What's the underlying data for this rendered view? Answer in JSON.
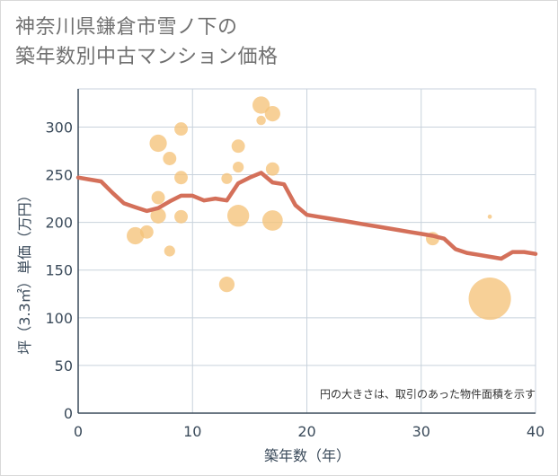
{
  "title_line1": "神奈川県鎌倉市雪ノ下の",
  "title_line2": "築年数別中古マンション価格",
  "chart_data": {
    "type": "scatter",
    "title": "神奈川県鎌倉市雪ノ下の築年数別中古マンション価格",
    "xlabel": "築年数（年）",
    "ylabel": "坪（3.3㎡）単価（万円）",
    "xlim": [
      0,
      40
    ],
    "ylim": [
      0,
      340
    ],
    "x_ticks": [
      0,
      10,
      20,
      30,
      40
    ],
    "y_ticks": [
      0,
      50,
      100,
      150,
      200,
      250,
      300
    ],
    "grid": true,
    "note": "円の大きさは、取引のあった物件面積を示す",
    "bubbles": [
      {
        "x": 5,
        "y": 186,
        "size": 5
      },
      {
        "x": 6,
        "y": 190,
        "size": 3
      },
      {
        "x": 7,
        "y": 283,
        "size": 5
      },
      {
        "x": 7,
        "y": 226,
        "size": 3
      },
      {
        "x": 7,
        "y": 207,
        "size": 4
      },
      {
        "x": 8,
        "y": 267,
        "size": 3
      },
      {
        "x": 8,
        "y": 170,
        "size": 2
      },
      {
        "x": 9,
        "y": 298,
        "size": 3
      },
      {
        "x": 9,
        "y": 247,
        "size": 3
      },
      {
        "x": 9,
        "y": 206,
        "size": 3
      },
      {
        "x": 13,
        "y": 246,
        "size": 2
      },
      {
        "x": 13,
        "y": 135,
        "size": 4
      },
      {
        "x": 14,
        "y": 280,
        "size": 3
      },
      {
        "x": 14,
        "y": 258,
        "size": 2
      },
      {
        "x": 14,
        "y": 207,
        "size": 8
      },
      {
        "x": 16,
        "y": 323,
        "size": 5
      },
      {
        "x": 16,
        "y": 307,
        "size": 1.5
      },
      {
        "x": 17,
        "y": 314,
        "size": 4
      },
      {
        "x": 17,
        "y": 256,
        "size": 3
      },
      {
        "x": 17,
        "y": 202,
        "size": 7
      },
      {
        "x": 31,
        "y": 183,
        "size": 3
      },
      {
        "x": 36,
        "y": 206,
        "size": 0.3
      },
      {
        "x": 36,
        "y": 120,
        "size": 30
      }
    ],
    "series": [
      {
        "name": "average",
        "color": "#d4705a",
        "x": [
          0,
          1,
          2,
          3,
          4,
          5,
          6,
          7,
          8,
          9,
          10,
          11,
          12,
          13,
          14,
          15,
          16,
          17,
          18,
          19,
          20,
          21,
          22,
          23,
          24,
          25,
          26,
          27,
          28,
          29,
          30,
          31,
          32,
          33,
          34,
          35,
          36,
          37,
          38,
          39,
          40
        ],
        "values": [
          247,
          245,
          243,
          231,
          220,
          216,
          212,
          215,
          222,
          228,
          228,
          223,
          225,
          223,
          241,
          247,
          252,
          242,
          240,
          218,
          208,
          206,
          204,
          202,
          200,
          198,
          196,
          194,
          192,
          190,
          188,
          186,
          183,
          172,
          168,
          166,
          164,
          162,
          169,
          169,
          167
        ]
      }
    ],
    "colors": {
      "bubble_fill": "#f5c37a",
      "grid": "#c8d2dc",
      "axis": "#3a4a5a"
    }
  }
}
